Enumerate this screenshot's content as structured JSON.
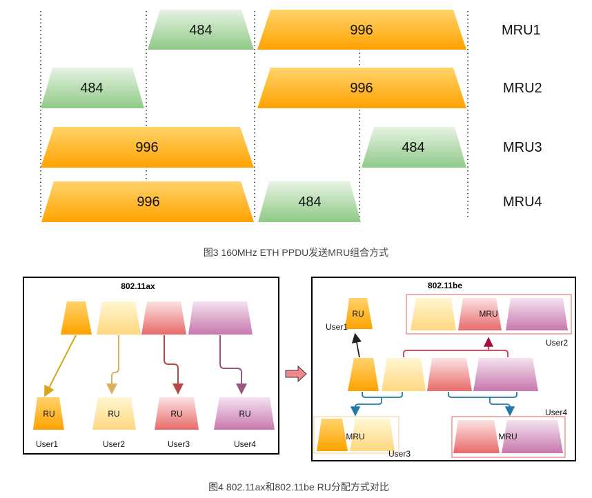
{
  "figure3": {
    "caption": "图3 160MHz ETH PPDU发送MRU组合方式",
    "rows": [
      {
        "label": "MRU1",
        "blocks": [
          {
            "text": "484",
            "kind": "green"
          },
          {
            "text": "996",
            "kind": "orange"
          }
        ]
      },
      {
        "label": "MRU2",
        "blocks": [
          {
            "text": "484",
            "kind": "green"
          },
          {
            "text": "996",
            "kind": "orange"
          }
        ]
      },
      {
        "label": "MRU3",
        "blocks": [
          {
            "text": "996",
            "kind": "orange"
          },
          {
            "text": "484",
            "kind": "green"
          }
        ]
      },
      {
        "label": "MRU4",
        "blocks": [
          {
            "text": "996",
            "kind": "orange"
          },
          {
            "text": "484",
            "kind": "green"
          }
        ]
      }
    ]
  },
  "figure4": {
    "caption": "图4 802.11ax和802.11be RU分配方式对比",
    "ax": {
      "title": "802.11ax",
      "ru_label": "RU",
      "users": [
        "User1",
        "User2",
        "User3",
        "User4"
      ]
    },
    "be": {
      "title": "802.11be",
      "ru_label": "RU",
      "mru_label": "MRU",
      "users": [
        "User1",
        "User2",
        "User3",
        "User4"
      ]
    }
  },
  "colors": {
    "orange_top": "#ffd36a",
    "orange_bottom": "#ffa200",
    "green_top": "#e6f3e2",
    "green_bottom": "#8fc987",
    "yellow_top": "#fff6d2",
    "yellow_bottom": "#ffd780",
    "red_top": "#fce2e2",
    "red_bottom": "#e86a6a",
    "purple_top": "#f3e1ef",
    "purple_bottom": "#c878ad",
    "arrow_orange": "#d6a419",
    "arrow_yellow": "#d8b060",
    "arrow_red": "#b84545",
    "arrow_purple": "#9a5585",
    "arrow_blue": "#1e7aa6",
    "arrow_crimson": "#a3123e",
    "box_red": "#e55a5a",
    "box_orange": "#f3d18b"
  }
}
